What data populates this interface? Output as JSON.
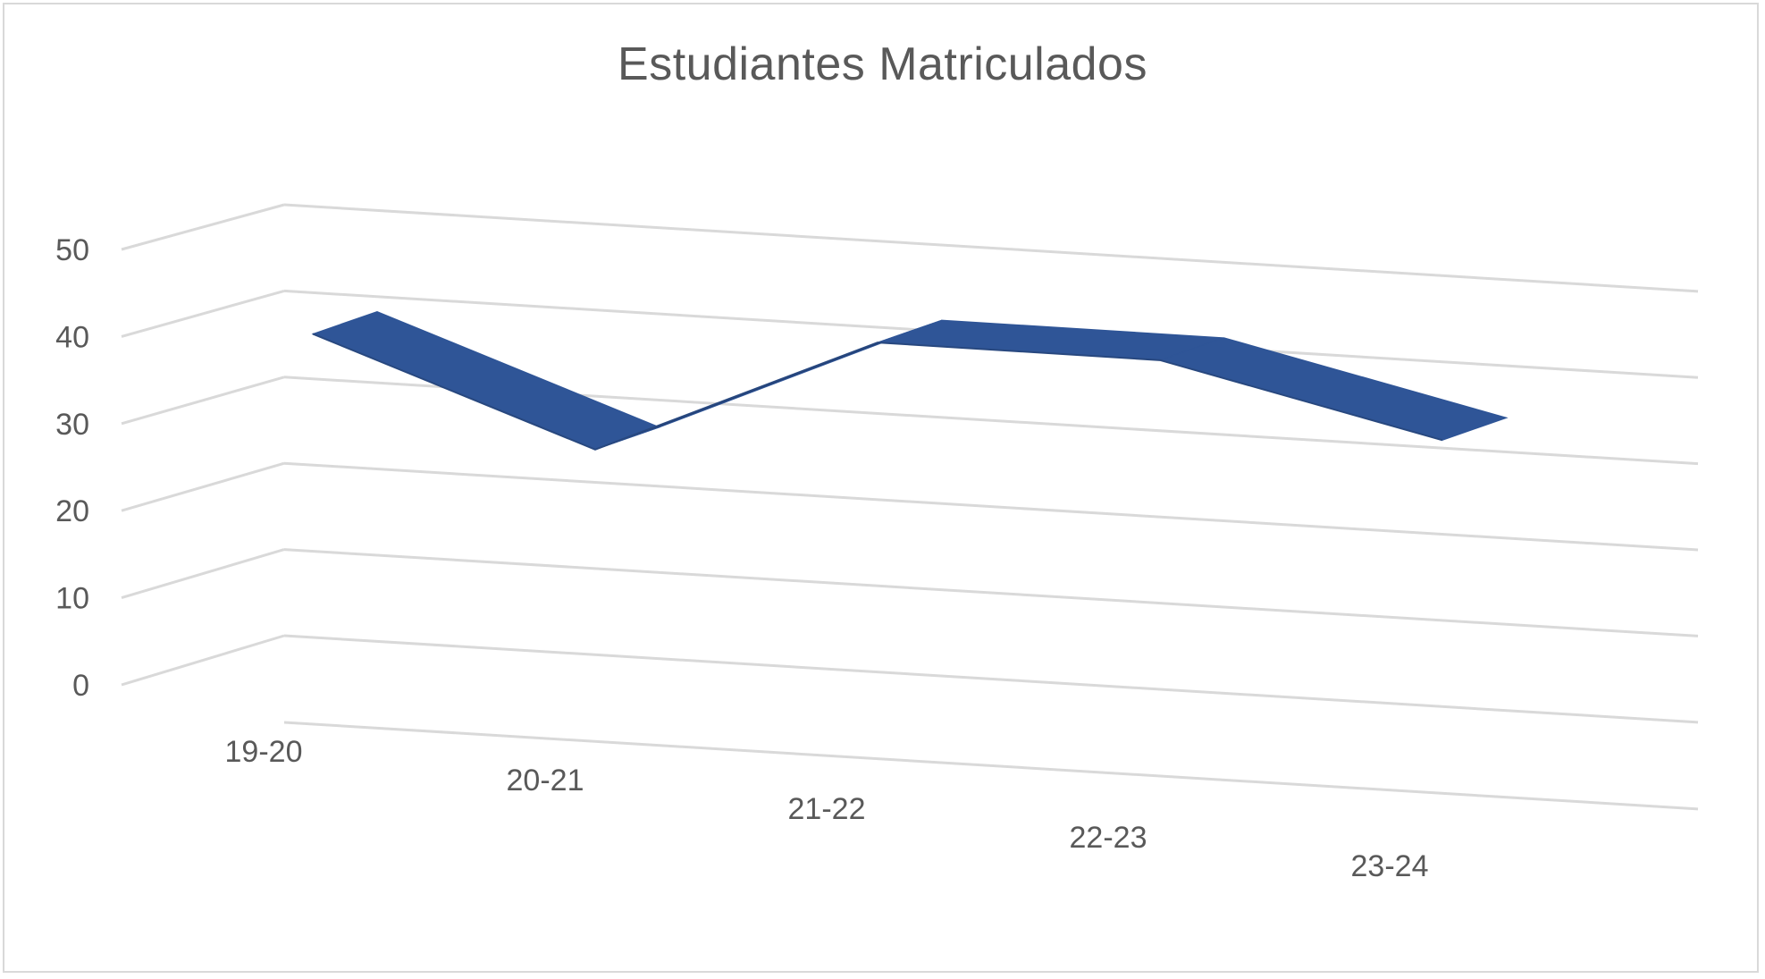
{
  "chart_data": {
    "type": "line",
    "title": "Estudiantes Matriculados",
    "categories": [
      "19-20",
      "20-21",
      "21-22",
      "22-23",
      "23-24"
    ],
    "series": [
      {
        "values": [
          37,
          26,
          40,
          40,
          33
        ]
      }
    ],
    "ylim": [
      0,
      50
    ],
    "yticks": [
      0,
      10,
      20,
      30,
      40,
      50
    ],
    "grid": true,
    "legend": "none",
    "view": "3d",
    "colors": {
      "series": "#2f5597",
      "series_dark": "#1f3b6e",
      "grid": "#d9d9d9",
      "text": "#595959"
    }
  }
}
